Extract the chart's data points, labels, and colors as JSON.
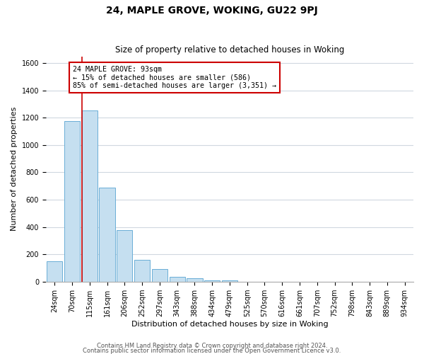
{
  "title": "24, MAPLE GROVE, WOKING, GU22 9PJ",
  "subtitle": "Size of property relative to detached houses in Woking",
  "xlabel": "Distribution of detached houses by size in Woking",
  "ylabel": "Number of detached properties",
  "bar_labels": [
    "24sqm",
    "70sqm",
    "115sqm",
    "161sqm",
    "206sqm",
    "252sqm",
    "297sqm",
    "343sqm",
    "388sqm",
    "434sqm",
    "479sqm",
    "525sqm",
    "570sqm",
    "616sqm",
    "661sqm",
    "707sqm",
    "752sqm",
    "798sqm",
    "843sqm",
    "889sqm",
    "934sqm"
  ],
  "bar_values": [
    150,
    1175,
    1255,
    690,
    375,
    160,
    90,
    37,
    22,
    10,
    8,
    0,
    0,
    0,
    0,
    0,
    0,
    0,
    0,
    0,
    0
  ],
  "bar_color": "#c5dff0",
  "bar_edge_color": "#6aaed6",
  "marker_bar_idx": 2,
  "marker_color": "#cc0000",
  "annotation_line1": "24 MAPLE GROVE: 93sqm",
  "annotation_line2": "← 15% of detached houses are smaller (586)",
  "annotation_line3": "85% of semi-detached houses are larger (3,351) →",
  "annotation_box_color": "#ffffff",
  "annotation_box_edge": "#cc0000",
  "ylim": [
    0,
    1650
  ],
  "yticks": [
    0,
    200,
    400,
    600,
    800,
    1000,
    1200,
    1400,
    1600
  ],
  "footer1": "Contains HM Land Registry data © Crown copyright and database right 2024.",
  "footer2": "Contains public sector information licensed under the Open Government Licence v3.0.",
  "grid_color": "#d0d8e0",
  "background_color": "#ffffff",
  "title_fontsize": 10,
  "subtitle_fontsize": 8.5,
  "xlabel_fontsize": 8,
  "ylabel_fontsize": 8,
  "tick_fontsize": 7,
  "footer_fontsize": 6
}
